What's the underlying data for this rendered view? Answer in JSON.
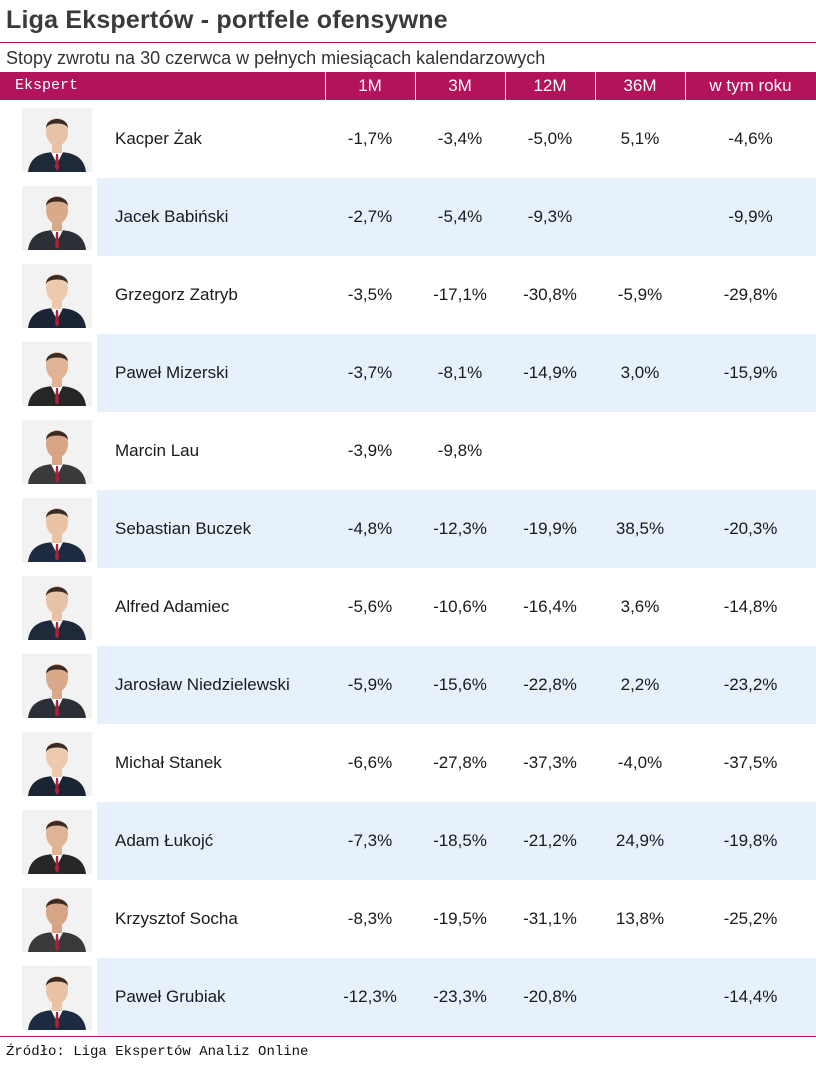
{
  "title": "Liga Ekspertów - portfele ofensywne",
  "subtitle": "Stopy zwrotu na 30 czerwca w pełnych miesiącach kalendarzowych",
  "header": {
    "expert": "Ekspert",
    "m1": "1M",
    "m3": "3M",
    "m12": "12M",
    "m36": "36M",
    "ytd": "w tym roku"
  },
  "accent_color": "#b3135a",
  "alt_row_color": "#e6f1fb",
  "rows": [
    {
      "name": "Kacper Żak",
      "m1": "-1,7%",
      "m3": "-3,4%",
      "m12": "-5,0%",
      "m36": "5,1%",
      "ytd": "-4,6%"
    },
    {
      "name": "Jacek Babiński",
      "m1": "-2,7%",
      "m3": "-5,4%",
      "m12": "-9,3%",
      "m36": "",
      "ytd": "-9,9%"
    },
    {
      "name": "Grzegorz Zatryb",
      "m1": "-3,5%",
      "m3": "-17,1%",
      "m12": "-30,8%",
      "m36": "-5,9%",
      "ytd": "-29,8%"
    },
    {
      "name": "Paweł Mizerski",
      "m1": "-3,7%",
      "m3": "-8,1%",
      "m12": "-14,9%",
      "m36": "3,0%",
      "ytd": "-15,9%"
    },
    {
      "name": "Marcin Lau",
      "m1": "-3,9%",
      "m3": "-9,8%",
      "m12": "",
      "m36": "",
      "ytd": ""
    },
    {
      "name": "Sebastian Buczek",
      "m1": "-4,8%",
      "m3": "-12,3%",
      "m12": "-19,9%",
      "m36": "38,5%",
      "ytd": "-20,3%"
    },
    {
      "name": "Alfred Adamiec",
      "m1": "-5,6%",
      "m3": "-10,6%",
      "m12": "-16,4%",
      "m36": "3,6%",
      "ytd": "-14,8%"
    },
    {
      "name": "Jarosław Niedzielewski",
      "m1": "-5,9%",
      "m3": "-15,6%",
      "m12": "-22,8%",
      "m36": "2,2%",
      "ytd": "-23,2%"
    },
    {
      "name": "Michał Stanek",
      "m1": "-6,6%",
      "m3": "-27,8%",
      "m12": "-37,3%",
      "m36": "-4,0%",
      "ytd": "-37,5%"
    },
    {
      "name": "Adam Łukojć",
      "m1": "-7,3%",
      "m3": "-18,5%",
      "m12": "-21,2%",
      "m36": "24,9%",
      "ytd": "-19,8%"
    },
    {
      "name": "Krzysztof Socha",
      "m1": "-8,3%",
      "m3": "-19,5%",
      "m12": "-31,1%",
      "m36": "13,8%",
      "ytd": "-25,2%"
    },
    {
      "name": "Paweł Grubiak",
      "m1": "-12,3%",
      "m3": "-23,3%",
      "m12": "-20,8%",
      "m36": "",
      "ytd": "-14,4%"
    }
  ],
  "source": "Źródło: Liga Ekspertów Analiz Online"
}
